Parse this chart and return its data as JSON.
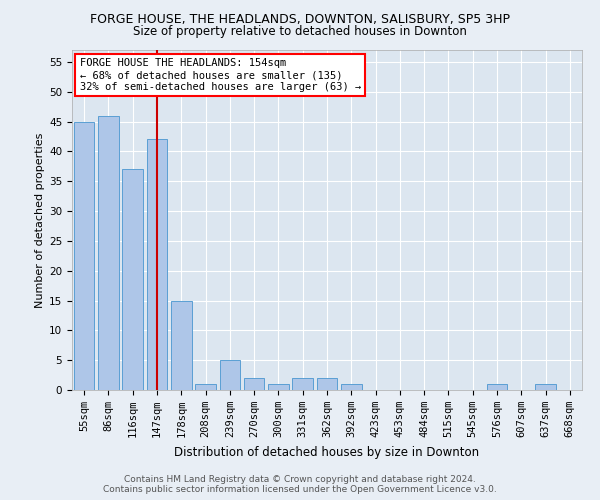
{
  "title": "FORGE HOUSE, THE HEADLANDS, DOWNTON, SALISBURY, SP5 3HP",
  "subtitle": "Size of property relative to detached houses in Downton",
  "xlabel": "Distribution of detached houses by size in Downton",
  "ylabel": "Number of detached properties",
  "bar_labels": [
    "55sqm",
    "86sqm",
    "116sqm",
    "147sqm",
    "178sqm",
    "208sqm",
    "239sqm",
    "270sqm",
    "300sqm",
    "331sqm",
    "362sqm",
    "392sqm",
    "423sqm",
    "453sqm",
    "484sqm",
    "515sqm",
    "545sqm",
    "576sqm",
    "607sqm",
    "637sqm",
    "668sqm"
  ],
  "bar_values": [
    45,
    46,
    37,
    42,
    15,
    1,
    5,
    2,
    1,
    2,
    2,
    1,
    0,
    0,
    0,
    0,
    0,
    1,
    0,
    1,
    0
  ],
  "bar_color": "#aec6e8",
  "bar_edge_color": "#5a9fd4",
  "vline_x": 3.5,
  "vline_color": "#cc0000",
  "ylim": [
    0,
    57
  ],
  "yticks": [
    0,
    5,
    10,
    15,
    20,
    25,
    30,
    35,
    40,
    45,
    50,
    55
  ],
  "annotation_title": "FORGE HOUSE THE HEADLANDS: 154sqm",
  "annotation_line1": "← 68% of detached houses are smaller (135)",
  "annotation_line2": "32% of semi-detached houses are larger (63) →",
  "footer1": "Contains HM Land Registry data © Crown copyright and database right 2024.",
  "footer2": "Contains public sector information licensed under the Open Government Licence v3.0.",
  "bg_color": "#e8eef5",
  "plot_bg_color": "#dce6f0",
  "title_fontsize": 9,
  "subtitle_fontsize": 8.5,
  "xlabel_fontsize": 8.5,
  "ylabel_fontsize": 8,
  "tick_fontsize": 7.5,
  "annotation_fontsize": 7.5,
  "footer_fontsize": 6.5
}
